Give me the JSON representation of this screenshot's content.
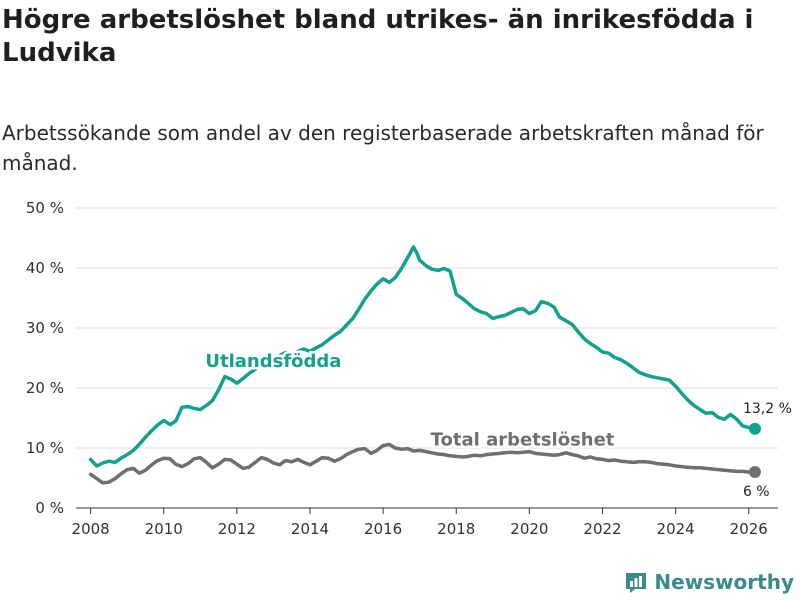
{
  "header": {
    "title": "Högre arbetslöshet bland utrikes- än inrikesfödda i Ludvika",
    "subtitle": "Arbetssökande som andel av den registerbaserade arbetskraften månad för månad."
  },
  "brand": {
    "name": "Newsworthy"
  },
  "colors": {
    "foreign": "#13a08e",
    "total": "#6e6e73",
    "grid": "#dddddd"
  },
  "chart_data": {
    "type": "line",
    "title": "Högre arbetslöshet bland utrikes- än inrikesfödda i Ludvika",
    "subtitle": "Arbetssökande som andel av den registerbaserade arbetskraften månad för månad.",
    "xlabel": "",
    "ylabel": "",
    "xlim": [
      2007.6,
      2026.8
    ],
    "ylim": [
      0,
      50
    ],
    "grid": true,
    "y_ticks": [
      0,
      10,
      20,
      30,
      40,
      50
    ],
    "y_tick_labels": [
      "0 %",
      "10 %",
      "20 %",
      "30 %",
      "40 %",
      "50 %"
    ],
    "x_ticks": [
      2008,
      2010,
      2012,
      2014,
      2016,
      2018,
      2020,
      2022,
      2024,
      2026
    ],
    "x_tick_labels": [
      "2008",
      "2010",
      "2012",
      "2014",
      "2016",
      "2018",
      "2020",
      "2022",
      "2024",
      "2026"
    ],
    "series": [
      {
        "name": "Utlandsfödda",
        "x": [
          2008.0,
          2008.17,
          2008.33,
          2008.5,
          2008.67,
          2008.83,
          2009.0,
          2009.17,
          2009.33,
          2009.5,
          2009.67,
          2009.83,
          2010.0,
          2010.17,
          2010.33,
          2010.5,
          2010.67,
          2010.83,
          2011.0,
          2011.17,
          2011.33,
          2011.5,
          2011.67,
          2011.83,
          2012.0,
          2012.17,
          2012.33,
          2012.5,
          2012.67,
          2012.83,
          2013.0,
          2013.17,
          2013.33,
          2013.5,
          2013.67,
          2013.83,
          2014.0,
          2014.17,
          2014.33,
          2014.5,
          2014.67,
          2014.83,
          2015.0,
          2015.17,
          2015.33,
          2015.5,
          2015.67,
          2015.83,
          2016.0,
          2016.17,
          2016.33,
          2016.5,
          2016.67,
          2016.83,
          2016.92,
          2017.0,
          2017.17,
          2017.33,
          2017.5,
          2017.67,
          2017.83,
          2018.0,
          2018.17,
          2018.33,
          2018.5,
          2018.67,
          2018.83,
          2019.0,
          2019.17,
          2019.33,
          2019.5,
          2019.67,
          2019.83,
          2020.0,
          2020.17,
          2020.33,
          2020.5,
          2020.67,
          2020.83,
          2021.0,
          2021.17,
          2021.33,
          2021.5,
          2021.67,
          2021.83,
          2022.0,
          2022.17,
          2022.33,
          2022.5,
          2022.67,
          2022.83,
          2023.0,
          2023.17,
          2023.33,
          2023.5,
          2023.67,
          2023.83,
          2024.0,
          2024.17,
          2024.33,
          2024.5,
          2024.67,
          2024.83,
          2025.0,
          2025.17,
          2025.33,
          2025.5,
          2025.67,
          2025.83,
          2026.0,
          2026.17
        ],
        "values": [
          8.1,
          7.0,
          7.5,
          7.8,
          7.6,
          8.3,
          8.9,
          9.6,
          10.6,
          11.8,
          12.9,
          13.8,
          14.6,
          13.9,
          14.5,
          16.8,
          16.9,
          16.6,
          16.4,
          17.1,
          17.9,
          19.7,
          21.9,
          21.5,
          20.8,
          21.6,
          22.4,
          23.1,
          24.0,
          24.6,
          24.9,
          25.4,
          25.9,
          25.7,
          26.1,
          26.5,
          26.1,
          26.7,
          27.2,
          28.0,
          28.8,
          29.4,
          30.5,
          31.6,
          33.1,
          34.8,
          36.2,
          37.3,
          38.2,
          37.6,
          38.4,
          39.9,
          41.7,
          43.5,
          42.5,
          41.3,
          40.4,
          39.8,
          39.6,
          39.9,
          39.5,
          35.6,
          34.9,
          34.1,
          33.2,
          32.7,
          32.4,
          31.6,
          31.9,
          32.1,
          32.6,
          33.1,
          33.2,
          32.4,
          32.9,
          34.4,
          34.1,
          33.5,
          31.8,
          31.2,
          30.6,
          29.4,
          28.2,
          27.4,
          26.8,
          26.0,
          25.8,
          25.1,
          24.7,
          24.1,
          23.4,
          22.6,
          22.2,
          21.9,
          21.7,
          21.5,
          21.3,
          20.3,
          19.1,
          18.0,
          17.1,
          16.4,
          15.8,
          15.9,
          15.1,
          14.8,
          15.6,
          14.8,
          13.7,
          13.4,
          13.2
        ]
      },
      {
        "name": "Total arbetslöshet",
        "x": [
          2008.0,
          2008.17,
          2008.33,
          2008.5,
          2008.67,
          2008.83,
          2009.0,
          2009.17,
          2009.33,
          2009.5,
          2009.67,
          2009.83,
          2010.0,
          2010.17,
          2010.33,
          2010.5,
          2010.67,
          2010.83,
          2011.0,
          2011.17,
          2011.33,
          2011.5,
          2011.67,
          2011.83,
          2012.0,
          2012.17,
          2012.33,
          2012.5,
          2012.67,
          2012.83,
          2013.0,
          2013.17,
          2013.33,
          2013.5,
          2013.67,
          2013.83,
          2014.0,
          2014.17,
          2014.33,
          2014.5,
          2014.67,
          2014.83,
          2015.0,
          2015.17,
          2015.33,
          2015.5,
          2015.67,
          2015.83,
          2016.0,
          2016.17,
          2016.33,
          2016.5,
          2016.67,
          2016.83,
          2017.0,
          2017.17,
          2017.33,
          2017.5,
          2017.67,
          2017.83,
          2018.0,
          2018.17,
          2018.33,
          2018.5,
          2018.67,
          2018.83,
          2019.0,
          2019.17,
          2019.33,
          2019.5,
          2019.67,
          2019.83,
          2020.0,
          2020.17,
          2020.33,
          2020.5,
          2020.67,
          2020.83,
          2021.0,
          2021.17,
          2021.33,
          2021.5,
          2021.67,
          2021.83,
          2022.0,
          2022.17,
          2022.33,
          2022.5,
          2022.67,
          2022.83,
          2023.0,
          2023.17,
          2023.33,
          2023.5,
          2023.67,
          2023.83,
          2024.0,
          2024.17,
          2024.33,
          2024.5,
          2024.67,
          2024.83,
          2025.0,
          2025.17,
          2025.33,
          2025.5,
          2025.67,
          2025.83,
          2026.0,
          2026.17
        ],
        "values": [
          5.6,
          4.9,
          4.2,
          4.3,
          4.9,
          5.7,
          6.4,
          6.6,
          5.8,
          6.3,
          7.2,
          7.9,
          8.3,
          8.2,
          7.3,
          6.9,
          7.4,
          8.2,
          8.4,
          7.6,
          6.7,
          7.3,
          8.1,
          8.0,
          7.3,
          6.6,
          6.8,
          7.6,
          8.4,
          8.1,
          7.5,
          7.2,
          7.9,
          7.7,
          8.1,
          7.6,
          7.2,
          7.8,
          8.4,
          8.3,
          7.8,
          8.2,
          8.9,
          9.4,
          9.8,
          9.9,
          9.1,
          9.6,
          10.4,
          10.6,
          10.0,
          9.8,
          9.9,
          9.5,
          9.6,
          9.4,
          9.2,
          9.0,
          8.9,
          8.7,
          8.6,
          8.5,
          8.6,
          8.8,
          8.7,
          8.9,
          9.0,
          9.1,
          9.2,
          9.3,
          9.2,
          9.3,
          9.4,
          9.1,
          9.0,
          8.9,
          8.8,
          8.9,
          9.2,
          8.9,
          8.7,
          8.3,
          8.5,
          8.2,
          8.1,
          7.9,
          8.0,
          7.8,
          7.7,
          7.6,
          7.7,
          7.7,
          7.6,
          7.4,
          7.3,
          7.2,
          7.0,
          6.9,
          6.8,
          6.7,
          6.7,
          6.6,
          6.5,
          6.4,
          6.3,
          6.2,
          6.1,
          6.1,
          6.0,
          6.0
        ]
      }
    ],
    "annotations": [
      {
        "series": "Utlandsfödda",
        "text": "Utlandsfödda",
        "x": 2013.0,
        "y": 23.5,
        "anchor": "middle"
      },
      {
        "series": "Total arbetslöshet",
        "text": "Total arbetslöshet",
        "x": 2017.3,
        "y": 10.4,
        "anchor": "start"
      }
    ],
    "end_labels": [
      {
        "series": "Utlandsfödda",
        "text": "13,2 %",
        "value": 13.2,
        "position": "above"
      },
      {
        "series": "Total arbetslöshet",
        "text": "6 %",
        "value": 6.0,
        "position": "below"
      }
    ]
  }
}
